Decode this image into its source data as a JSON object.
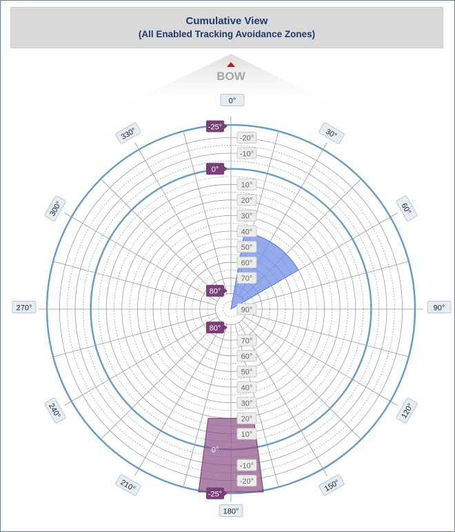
{
  "title": {
    "main": "Cumulative View",
    "sub": "(All Enabled Tracking Avoidance Zones)"
  },
  "bow_label": "BOW",
  "colors": {
    "title_text": "#1f3a6b",
    "circle_blue": "#6b9cc4",
    "zone_blue": "#6f8fe6",
    "zone_purple": "#8a4f86",
    "marker_purple": "#7a3f78"
  },
  "azimuth_labels": [
    {
      "deg": 0,
      "text": "0°"
    },
    {
      "deg": 30,
      "text": "30°"
    },
    {
      "deg": 60,
      "text": "60°"
    },
    {
      "deg": 90,
      "text": "90°"
    },
    {
      "deg": 120,
      "text": "120°"
    },
    {
      "deg": 150,
      "text": "150°"
    },
    {
      "deg": 180,
      "text": "180°"
    },
    {
      "deg": 210,
      "text": "210°"
    },
    {
      "deg": 240,
      "text": "240°"
    },
    {
      "deg": 270,
      "text": "270°"
    },
    {
      "deg": 300,
      "text": "300°"
    },
    {
      "deg": 330,
      "text": "330°"
    }
  ],
  "elevation_labels_top": [
    "-20°",
    "-10°",
    "10°",
    "20°",
    "30°",
    "40°",
    "50°",
    "60°",
    "70°",
    "90°"
  ],
  "elevation_labels_bottom": [
    "70°",
    "60°",
    "50°",
    "40°",
    "30°",
    "20°",
    "10°",
    "-10°",
    "-20°"
  ],
  "markers": {
    "top_outer": "-25°",
    "top_inner": "0°",
    "top_center": "80°",
    "bottom_center": "80°",
    "bottom_inner": "0°",
    "bottom_outer": "-25°"
  },
  "zones": [
    {
      "name": "blue-zone",
      "az_start": 10,
      "az_end": 60,
      "el_min": 90,
      "el_max": 40
    },
    {
      "name": "purple-zone",
      "az_start": 172,
      "az_end": 188,
      "el_min": 20,
      "el_max": -25
    }
  ]
}
